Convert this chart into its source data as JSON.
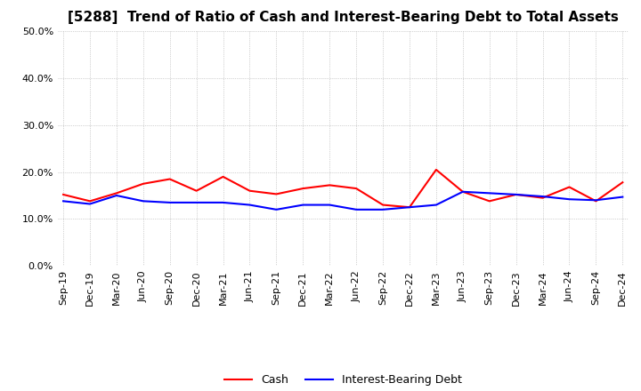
{
  "title": "[5288]  Trend of Ratio of Cash and Interest-Bearing Debt to Total Assets",
  "ylim": [
    0.0,
    0.5
  ],
  "yticks": [
    0.0,
    0.1,
    0.2,
    0.3,
    0.4,
    0.5
  ],
  "x_labels": [
    "Sep-19",
    "Dec-19",
    "Mar-20",
    "Jun-20",
    "Sep-20",
    "Dec-20",
    "Mar-21",
    "Jun-21",
    "Sep-21",
    "Dec-21",
    "Mar-22",
    "Jun-22",
    "Sep-22",
    "Dec-22",
    "Mar-23",
    "Jun-23",
    "Sep-23",
    "Dec-23",
    "Mar-24",
    "Jun-24",
    "Sep-24",
    "Dec-24"
  ],
  "cash": [
    0.152,
    0.138,
    0.155,
    0.175,
    0.185,
    0.16,
    0.19,
    0.16,
    0.153,
    0.165,
    0.172,
    0.165,
    0.13,
    0.125,
    0.205,
    0.158,
    0.138,
    0.152,
    0.145,
    0.168,
    0.138,
    0.178
  ],
  "interest_bearing_debt": [
    0.138,
    0.132,
    0.15,
    0.138,
    0.135,
    0.135,
    0.135,
    0.13,
    0.12,
    0.13,
    0.13,
    0.12,
    0.12,
    0.125,
    0.13,
    0.158,
    0.155,
    0.152,
    0.148,
    0.142,
    0.14,
    0.147
  ],
  "cash_color": "#ff0000",
  "debt_color": "#0000ff",
  "background_color": "#ffffff",
  "grid_color": "#aaaaaa",
  "title_fontsize": 11,
  "tick_fontsize": 8,
  "legend_fontsize": 9
}
